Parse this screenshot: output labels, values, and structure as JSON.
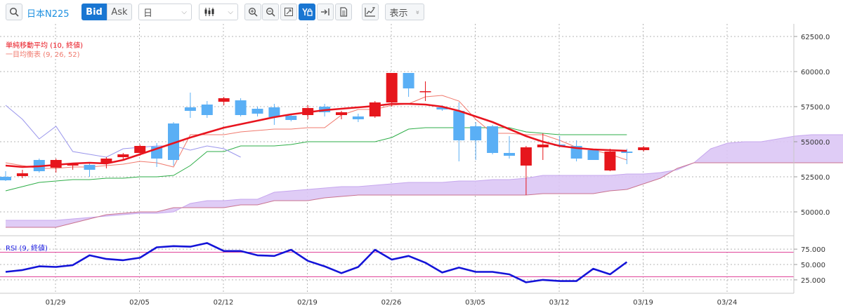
{
  "toolbar": {
    "symbol": "日本N225",
    "bid_label": "Bid",
    "ask_label": "Ask",
    "interval": "日",
    "display_label": "表示",
    "display_chevron": "»"
  },
  "chart_data": [
    {
      "type": "candlestick",
      "legend": [
        {
          "name": "単純移動平均 (10, 終値)",
          "color": "#e8141e"
        },
        {
          "name": "一目均衡表 (9, 26, 52)",
          "color": "#f07a6e"
        }
      ],
      "x_ticks": [
        "01/29",
        "02/05",
        "02/12",
        "02/19",
        "02/26",
        "03/05",
        "03/12",
        "03/19",
        "03/24"
      ],
      "y_ticks": [
        "62500.0",
        "60000.0",
        "57500.0",
        "55000.0",
        "52500.0",
        "50000.0"
      ],
      "ylim": [
        48500,
        63000
      ],
      "candles": [
        {
          "o": 52500,
          "h": 52900,
          "l": 52200,
          "c": 52250
        },
        {
          "o": 52550,
          "h": 53000,
          "l": 52400,
          "c": 52750
        },
        {
          "o": 53700,
          "h": 53800,
          "l": 52800,
          "c": 52900
        },
        {
          "o": 53150,
          "h": 53800,
          "l": 52800,
          "c": 53700
        },
        {
          "o": 53300,
          "h": 53500,
          "l": 53000,
          "c": 53400
        },
        {
          "o": 53350,
          "h": 53450,
          "l": 52500,
          "c": 53000
        },
        {
          "o": 53500,
          "h": 53900,
          "l": 53100,
          "c": 53800
        },
        {
          "o": 53900,
          "h": 54200,
          "l": 53700,
          "c": 54100
        },
        {
          "o": 54200,
          "h": 54800,
          "l": 54000,
          "c": 54700
        },
        {
          "o": 54650,
          "h": 54900,
          "l": 53200,
          "c": 53800
        },
        {
          "o": 56300,
          "h": 56400,
          "l": 53300,
          "c": 53700
        },
        {
          "o": 57450,
          "h": 58500,
          "l": 56700,
          "c": 57200
        },
        {
          "o": 57650,
          "h": 57900,
          "l": 56700,
          "c": 56900
        },
        {
          "o": 57850,
          "h": 58200,
          "l": 57600,
          "c": 58100
        },
        {
          "o": 57950,
          "h": 58100,
          "l": 56800,
          "c": 56900
        },
        {
          "o": 57350,
          "h": 57500,
          "l": 56800,
          "c": 57000
        },
        {
          "o": 57450,
          "h": 57700,
          "l": 56200,
          "c": 56750
        },
        {
          "o": 56850,
          "h": 57000,
          "l": 56450,
          "c": 56550
        },
        {
          "o": 56900,
          "h": 57600,
          "l": 56600,
          "c": 57400
        },
        {
          "o": 57500,
          "h": 57700,
          "l": 56800,
          "c": 57100
        },
        {
          "o": 56900,
          "h": 57200,
          "l": 56600,
          "c": 57100
        },
        {
          "o": 56800,
          "h": 57000,
          "l": 56400,
          "c": 56600
        },
        {
          "o": 56800,
          "h": 57900,
          "l": 56700,
          "c": 57800
        },
        {
          "o": 57800,
          "h": 59900,
          "l": 57500,
          "c": 59900
        },
        {
          "o": 59900,
          "h": 59900,
          "l": 58200,
          "c": 58800
        },
        {
          "o": 58600,
          "h": 59300,
          "l": 57900,
          "c": 58600
        },
        {
          "o": 57450,
          "h": 57600,
          "l": 57200,
          "c": 57300
        },
        {
          "o": 57200,
          "h": 57800,
          "l": 53600,
          "c": 55100
        },
        {
          "o": 56100,
          "h": 56400,
          "l": 53700,
          "c": 55100
        },
        {
          "o": 56100,
          "h": 56200,
          "l": 54100,
          "c": 54200
        },
        {
          "o": 54200,
          "h": 55400,
          "l": 53800,
          "c": 54000
        },
        {
          "o": 53300,
          "h": 54700,
          "l": 51200,
          "c": 54600
        },
        {
          "o": 54600,
          "h": 55600,
          "l": 53700,
          "c": 54800
        },
        {
          "o": 54800,
          "h": 55400,
          "l": 54600,
          "c": 54700
        },
        {
          "o": 54700,
          "h": 55100,
          "l": 53600,
          "c": 53800
        },
        {
          "o": 54400,
          "h": 54500,
          "l": 53700,
          "c": 53700
        },
        {
          "o": 52950,
          "h": 54500,
          "l": 52900,
          "c": 54300
        },
        {
          "o": 54300,
          "h": 54500,
          "l": 53400,
          "c": 54200
        },
        {
          "o": 54400,
          "h": 54700,
          "l": 54300,
          "c": 54600
        }
      ],
      "sma": [
        53300,
        53200,
        53250,
        53350,
        53450,
        53500,
        53450,
        53700,
        54100,
        54500,
        54900,
        55300,
        55650,
        56000,
        56250,
        56500,
        56750,
        56950,
        57100,
        57250,
        57350,
        57450,
        57550,
        57700,
        57700,
        57650,
        57500,
        57200,
        56800,
        56400,
        55900,
        55400,
        55000,
        54700,
        54550,
        54450,
        54400,
        54350
      ],
      "tenkan": [
        53500,
        53300,
        53100,
        53100,
        53200,
        53200,
        53300,
        53400,
        53600,
        53500,
        53200,
        55500,
        55500,
        55500,
        55700,
        55800,
        55900,
        55900,
        56000,
        56000,
        56900,
        57300,
        57300,
        57600,
        57700,
        58200,
        58300,
        57900,
        56600,
        55600,
        55600,
        55500,
        55500,
        55100,
        54600,
        54400,
        54100,
        53700
      ],
      "kijun": [
        51500,
        51800,
        52100,
        52200,
        52300,
        52300,
        52400,
        52400,
        52500,
        52500,
        52600,
        53300,
        54300,
        54300,
        54700,
        54700,
        54700,
        54800,
        55000,
        55000,
        55000,
        55000,
        55000,
        55300,
        55900,
        56000,
        56000,
        56000,
        56000,
        56000,
        56000,
        55700,
        55600,
        55500,
        55500,
        55500,
        55500,
        55500
      ],
      "chikou": [
        57600,
        56600,
        55200,
        56100,
        54300,
        54100,
        53900,
        54500,
        54600,
        54700,
        54700,
        54400,
        54700,
        54500,
        53900
      ],
      "span_a": [
        49400,
        49400,
        49400,
        49400,
        49500,
        49600,
        49700,
        49800,
        49900,
        49900,
        50000,
        50600,
        50800,
        50800,
        50900,
        50900,
        51400,
        51500,
        51600,
        51700,
        51800,
        51800,
        51900,
        52000,
        52100,
        52100,
        52100,
        52200,
        52200,
        52300,
        52300,
        52400,
        52600,
        52600,
        52600,
        52600,
        52600,
        52700,
        52700,
        52800,
        53000,
        53500,
        54500,
        54900,
        55000,
        55000,
        55200,
        55400,
        55500,
        55500,
        55500,
        55500,
        56100,
        56200,
        56200,
        56200,
        56200,
        56200,
        56200,
        56300
      ],
      "span_b": [
        48900,
        48900,
        48900,
        48900,
        49200,
        49500,
        49800,
        49900,
        50000,
        50000,
        50300,
        50300,
        50300,
        50300,
        50500,
        50500,
        50800,
        50800,
        50800,
        51000,
        51100,
        51200,
        51200,
        51200,
        51200,
        51200,
        51200,
        51200,
        51200,
        51200,
        51200,
        51200,
        51300,
        51300,
        51300,
        51300,
        51500,
        51600,
        52000,
        52400,
        53100,
        53500,
        53500,
        53500,
        53500,
        53500,
        53500,
        53500,
        53500,
        53500,
        53500,
        53500,
        53500,
        53500,
        53500,
        53500,
        53500,
        53500,
        53500,
        53500
      ]
    },
    {
      "type": "line",
      "legend": [
        {
          "name": "RSI (9, 終値)",
          "color": "#1a1ae0"
        }
      ],
      "y_ticks": [
        "75.000",
        "50.000",
        "25.000"
      ],
      "ylim": [
        10,
        90
      ],
      "reference_lines": [
        70,
        30
      ],
      "values": [
        38,
        41,
        47,
        46,
        49,
        65,
        59,
        57,
        61,
        78,
        80,
        79,
        85,
        72,
        72,
        65,
        64,
        74,
        56,
        47,
        36,
        46,
        74,
        58,
        64,
        53,
        37,
        45,
        38,
        38,
        34,
        21,
        25,
        23,
        23,
        43,
        34,
        54
      ]
    }
  ]
}
